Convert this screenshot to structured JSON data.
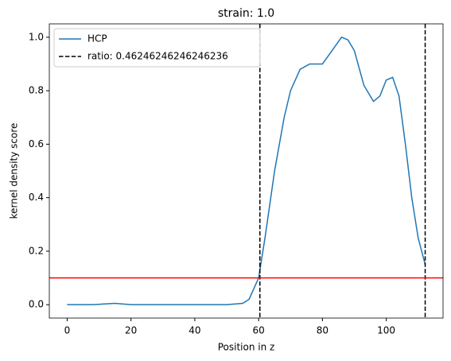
{
  "chart_data": {
    "type": "line",
    "title": "strain: 1.0",
    "xlabel": "Position in z",
    "ylabel": "kernel density score",
    "xlim": [
      -5.6,
      117.8
    ],
    "ylim": [
      -0.05,
      1.05
    ],
    "xticks": [
      0,
      20,
      40,
      60,
      80,
      100
    ],
    "yticks": [
      {
        "value": 0,
        "label": "0.0"
      },
      {
        "value": 0.2,
        "label": "0.2"
      },
      {
        "value": 0.4,
        "label": "0.4"
      },
      {
        "value": 0.6,
        "label": "0.6"
      },
      {
        "value": 0.8,
        "label": "0.8"
      },
      {
        "value": 1,
        "label": "1.0"
      }
    ],
    "series": [
      {
        "name": "HCP",
        "color": "#1f77b4",
        "x": [
          0,
          8,
          15,
          20,
          50,
          55,
          57,
          60,
          62,
          65,
          68,
          70,
          73,
          76,
          80,
          83,
          86,
          88,
          90,
          93,
          96,
          98,
          100,
          102,
          104,
          106,
          108,
          110,
          112.2
        ],
        "values": [
          0,
          0,
          0.005,
          0,
          0,
          0.005,
          0.02,
          0.1,
          0.25,
          0.5,
          0.7,
          0.8,
          0.88,
          0.9,
          0.9,
          0.95,
          1.0,
          0.99,
          0.95,
          0.82,
          0.76,
          0.78,
          0.84,
          0.85,
          0.78,
          0.6,
          0.4,
          0.25,
          0.15
        ]
      }
    ],
    "vlines": {
      "name": "ratio: 0.46246246246246236",
      "color": "#000000",
      "values": [
        60.4,
        112.2
      ]
    },
    "hline": {
      "value": 0.1,
      "color": "#ff0000"
    },
    "legend": "upper left"
  }
}
